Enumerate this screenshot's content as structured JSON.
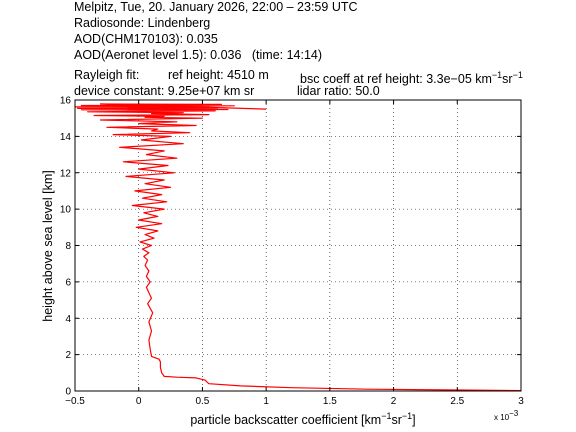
{
  "header": {
    "line1": "Melpitz, Tue, 20. January 2026, 22:00 – 23:59 UTC",
    "line2": "Radiosonde: Lindenberg",
    "line3": "AOD(CHM170103): 0.035",
    "line4": "AOD(Aeronet level 1.5): 0.036   (time: 14:14)",
    "line5a": "Rayleigh fit:",
    "line5b": "ref height: 4510 m",
    "line5c_pre": "bsc coeff at ref height: 3.3e−05 km",
    "line5c_sup1": "−1",
    "line5c_mid": "sr",
    "line5c_sup2": "−1",
    "line6a": "device constant: 9.25e+07 km sr",
    "line6b": "lidar ratio: 50.0"
  },
  "chart_data": {
    "type": "line",
    "xlabel_pre": "particle backscatter coefficient [km",
    "xlabel_sup1": "−1",
    "xlabel_mid": "sr",
    "xlabel_sup2": "−1",
    "xlabel_post": "]",
    "x_multiplier": "x 10",
    "x_multiplier_exp": "−3",
    "ylabel": "height above sea level [km]",
    "xlim": [
      -0.5,
      3
    ],
    "ylim": [
      0,
      16
    ],
    "xticks": [
      -0.5,
      0,
      0.5,
      1,
      1.5,
      2,
      2.5,
      3
    ],
    "xtick_labels": [
      "−0.5",
      "0",
      "0.5",
      "1",
      "1.5",
      "2",
      "2.5",
      "3"
    ],
    "yticks": [
      0,
      2,
      4,
      6,
      8,
      10,
      12,
      14,
      16
    ],
    "ytick_labels": [
      "0",
      "2",
      "4",
      "6",
      "8",
      "10",
      "12",
      "14",
      "16"
    ],
    "grid": true,
    "line_color": "#ff0000",
    "series": [
      {
        "x": [
          3.0,
          2.4,
          1.8,
          1.2,
          0.8,
          0.55,
          0.52,
          0.45,
          0.3,
          0.2,
          0.18,
          0.17,
          0.17,
          0.16,
          0.14,
          0.1,
          0.09,
          0.08,
          0.1,
          0.08,
          0.11,
          0.07,
          0.1,
          0.08,
          0.06,
          0.09,
          0.06,
          0.08,
          0.05,
          0.07,
          0.04,
          0.08,
          0.03,
          0.1,
          0.01,
          0.12,
          0.05,
          0.15,
          -0.02,
          0.18,
          0.0,
          0.15,
          0.04,
          0.2,
          -0.05,
          0.22,
          0.03,
          0.18,
          -0.03,
          0.25,
          0.05,
          0.2,
          -0.1,
          0.28,
          0.0,
          0.23,
          -0.12,
          0.3,
          0.06,
          0.2,
          -0.15,
          0.35,
          0.02,
          0.25,
          -0.2,
          0.4,
          0.1,
          0.15,
          -0.25,
          0.45,
          0.0,
          0.3,
          -0.3,
          0.5,
          0.05,
          0.2,
          -0.35,
          0.55,
          0.1,
          0.35,
          -0.4,
          0.6,
          0.2,
          0.25,
          -0.45,
          0.7,
          0.0,
          0.45,
          -0.48,
          0.62,
          0.15,
          0.4,
          -0.5,
          0.55,
          0.2,
          0.75,
          -0.45,
          0.5,
          -0.1,
          0.65,
          -0.3,
          1.0
        ],
        "y": [
          0.02,
          0.06,
          0.1,
          0.18,
          0.28,
          0.4,
          0.6,
          0.72,
          0.76,
          0.8,
          1.0,
          1.3,
          1.6,
          1.75,
          1.8,
          1.9,
          2.3,
          2.8,
          3.3,
          3.8,
          4.3,
          4.8,
          5.1,
          5.4,
          5.7,
          6.0,
          6.3,
          6.6,
          6.9,
          7.2,
          7.4,
          7.6,
          7.8,
          8.0,
          8.2,
          8.4,
          8.6,
          8.8,
          9.0,
          9.2,
          9.4,
          9.6,
          9.8,
          10.0,
          10.2,
          10.4,
          10.6,
          10.8,
          11.0,
          11.2,
          11.4,
          11.6,
          11.8,
          12.0,
          12.2,
          12.4,
          12.6,
          12.8,
          13.0,
          13.2,
          13.4,
          13.6,
          13.8,
          14.0,
          14.1,
          14.2,
          14.3,
          14.4,
          14.5,
          14.6,
          14.7,
          14.8,
          14.9,
          15.0,
          15.05,
          15.1,
          15.15,
          15.2,
          15.25,
          15.3,
          15.35,
          15.4,
          15.42,
          15.44,
          15.46,
          15.48,
          15.5,
          15.52,
          15.54,
          15.56,
          15.58,
          15.6,
          15.62,
          15.64,
          15.66,
          15.68,
          15.7,
          15.72,
          15.74,
          15.76,
          15.78,
          15.5
        ]
      }
    ]
  }
}
